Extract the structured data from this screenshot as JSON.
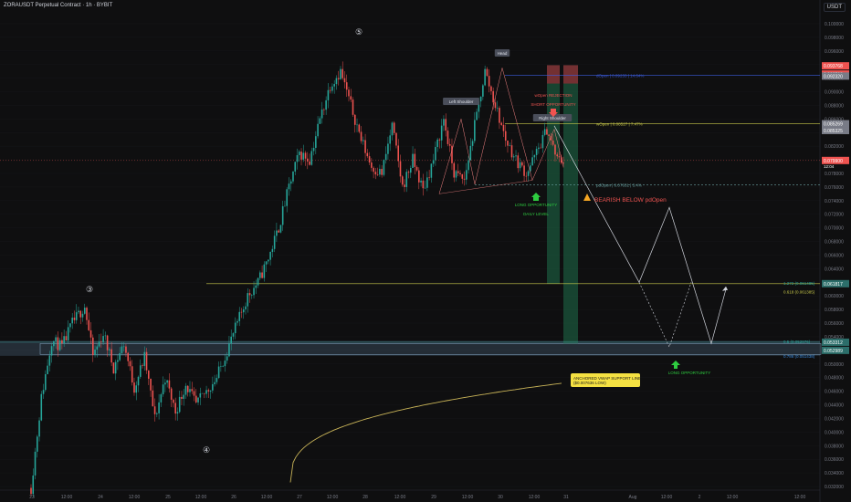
{
  "header": {
    "title": "ZORAUSDT Perpetual Contract · 1h · BYBIT",
    "currency": "USDT"
  },
  "colors": {
    "bg": "#0f0f10",
    "up": "#26a69a",
    "down": "#ef5350",
    "level_yellow": "#c8c84a",
    "level_blue": "#3b5bdb",
    "wave_white": "#d1d4dc",
    "long_green": "#2ecc40",
    "vwap": "#c9b458",
    "support_band": "#5f7f9a"
  },
  "chart_data": {
    "type": "candlestick",
    "x_ticks": [
      "23",
      "12:00",
      "24",
      "12:00",
      "25",
      "12:00",
      "26",
      "12:00",
      "27",
      "12:00",
      "28",
      "12:00",
      "29",
      "12:00",
      "30",
      "12:00",
      "31",
      "Aug",
      "12:00",
      "2",
      "12:00",
      "12:00"
    ],
    "y_ticks": [
      "0.032000",
      "0.034000",
      "0.036000",
      "0.038000",
      "0.040000",
      "0.042000",
      "0.044000",
      "0.046000",
      "0.048000",
      "0.050000",
      "0.052000",
      "0.054000",
      "0.056000",
      "0.058000",
      "0.060000",
      "0.062000",
      "0.064000",
      "0.066000",
      "0.068000",
      "0.070000",
      "0.072000",
      "0.074000",
      "0.076000",
      "0.078000",
      "0.080000",
      "0.082000",
      "0.084000",
      "0.086000",
      "0.088000",
      "0.090000",
      "0.092000",
      "0.094000",
      "0.096000",
      "0.098000",
      "0.100000"
    ],
    "ylim": [
      0.0316,
      0.1016
    ],
    "anchors": [
      [
        0,
        0.0318
      ],
      [
        5,
        0.045
      ],
      [
        10,
        0.0535
      ],
      [
        15,
        0.0525
      ],
      [
        20,
        0.056
      ],
      [
        26,
        0.0585
      ],
      [
        30,
        0.0512
      ],
      [
        35,
        0.0545
      ],
      [
        40,
        0.0495
      ],
      [
        45,
        0.053
      ],
      [
        50,
        0.0465
      ],
      [
        55,
        0.051
      ],
      [
        60,
        0.042
      ],
      [
        65,
        0.048
      ],
      [
        70,
        0.043
      ],
      [
        75,
        0.047
      ],
      [
        80,
        0.044
      ],
      [
        85,
        0.046
      ],
      [
        90,
        0.048
      ],
      [
        95,
        0.052
      ],
      [
        100,
        0.056
      ],
      [
        105,
        0.06
      ],
      [
        110,
        0.062
      ],
      [
        115,
        0.0655
      ],
      [
        120,
        0.07
      ],
      [
        125,
        0.076
      ],
      [
        130,
        0.081
      ],
      [
        135,
        0.08
      ],
      [
        140,
        0.086
      ],
      [
        145,
        0.091
      ],
      [
        150,
        0.093
      ],
      [
        155,
        0.088
      ],
      [
        160,
        0.083
      ],
      [
        165,
        0.079
      ],
      [
        170,
        0.078
      ],
      [
        175,
        0.085
      ],
      [
        180,
        0.076
      ],
      [
        185,
        0.08
      ],
      [
        190,
        0.0755
      ],
      [
        195,
        0.08
      ],
      [
        200,
        0.086
      ],
      [
        205,
        0.078
      ],
      [
        210,
        0.077
      ],
      [
        215,
        0.085
      ],
      [
        220,
        0.093
      ],
      [
        225,
        0.088
      ],
      [
        230,
        0.083
      ],
      [
        235,
        0.08
      ],
      [
        240,
        0.078
      ],
      [
        245,
        0.081
      ],
      [
        250,
        0.0845
      ],
      [
        255,
        0.08
      ],
      [
        258,
        0.0799
      ]
    ],
    "last_price": "0.079900",
    "last_countdown": "12:04",
    "price_tags": [
      {
        "price": 0.0938,
        "label": "0.093768",
        "color": "#ef5350"
      },
      {
        "price": 0.0926,
        "label": "0.093768",
        "color": "#ef5350"
      },
      {
        "price": 0.0923,
        "label": "0.092320",
        "color": "#787b86"
      },
      {
        "price": 0.0853,
        "label": "0.085269",
        "color": "#787b86"
      },
      {
        "price": 0.0843,
        "label": "0.085325",
        "color": "#787b86"
      },
      {
        "price": 0.0799,
        "label": "0.079900",
        "color": "#ef5350"
      },
      {
        "price": 0.0618,
        "label": "0.061817",
        "color": "#2c6e6a"
      },
      {
        "price": 0.0532,
        "label": "0.053312",
        "color": "#2c6e6a"
      },
      {
        "price": 0.052,
        "label": "0.052989",
        "color": "#2c6e6a"
      }
    ],
    "levels": [
      {
        "name": "dOpen",
        "label": "dOpen | 0.09233 | 14.64%",
        "price": 0.0924,
        "color": "#3b5bdb"
      },
      {
        "name": "wOpen",
        "label": "wOpen | 0.08527 | 7.47%",
        "price": 0.0853,
        "color": "#c8c84a"
      },
      {
        "name": "pdOpen",
        "label": "pdOpen | 0.07631 | 3.4%",
        "price": 0.0763,
        "color": "#6aa0a0"
      }
    ],
    "fib_labels": [
      {
        "text": "1.272 (0.061485)",
        "price": 0.0619,
        "color": "#26a69a"
      },
      {
        "text": "0.618 (0.061385)",
        "price": 0.0606,
        "color": "#c8c84a"
      },
      {
        "text": "0.5 (0.052976)",
        "price": 0.0533,
        "color": "#26a69a"
      },
      {
        "text": "0.786 (0.051438)",
        "price": 0.0512,
        "color": "#3b8bdb"
      }
    ],
    "annotations": {
      "wave5": "⑤",
      "wave3": "③",
      "wave4": "④",
      "head": "Head",
      "left_shoulder": "Left Shoulder",
      "right_shoulder": "Right Shoulder",
      "wopen_rejection": "wOpen REJECTION",
      "short_opportunity": "SHORT OPPORTUNITY",
      "long_opportunity_1": "LONG OPPORTUNITY",
      "daily_level": "DAILY LEVEL",
      "bearish_below": "BEARISH BELOW pdOpen",
      "long_opportunity_2": "LONG OPPORTUNITY",
      "vwap_line1": "ANCHORED VWAP SUPPORT LINE",
      "vwap_line2": "($0.007636 LOW)"
    },
    "projection_prices": {
      "p0": 0.085,
      "p1": 0.062,
      "p2": 0.073,
      "p3": 0.053,
      "p4": 0.061,
      "p5": 0.0525,
      "p6": 0.062
    }
  }
}
